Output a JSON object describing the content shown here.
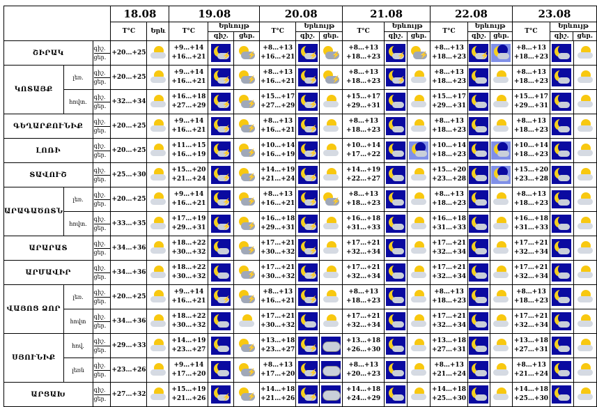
{
  "dates": [
    "18.08",
    "19.08",
    "20.08",
    "21.08",
    "22.08",
    "23.08"
  ],
  "sub": {
    "temp": "T°C",
    "phen_short": "Երև",
    "phen": "Երևույթ",
    "night": "գիշ.",
    "day": "ցեր.",
    "night_trunc": "գիշ.."
  },
  "rows": [
    {
      "region": "ՇԻՐԱԿ",
      "sub": "",
      "t18": [
        "+20…+25"
      ],
      "t": [
        "+9…+14",
        "+16…+21"
      ],
      "t20": [
        "+8…+13",
        "+16…+21"
      ],
      "t21": [
        "+8…+13",
        "+18…+23"
      ],
      "t22": [
        "+8…+13",
        "+18…+23"
      ],
      "t23": [
        "+8…+13",
        "+18…+23"
      ],
      "icons": [
        "sc",
        "ns",
        "sn",
        "ns",
        "sn",
        "ns",
        "sn",
        "ns",
        "mp",
        "nm",
        "ss"
      ]
    },
    {
      "region": "ԿՈՏԱՅՔ",
      "sub": "լեռ.",
      "t18": [
        "+20…+25"
      ],
      "t": [
        "+9…+14",
        "+16…+21"
      ],
      "t20": [
        "+8…+13",
        "+16…+21"
      ],
      "t21": [
        "+8…+13",
        "+18…+23"
      ],
      "t22": [
        "+8…+13",
        "+18…+23"
      ],
      "t23": [
        "+8…+13",
        "+18…+23"
      ],
      "icons": [
        "sc",
        "ns",
        "sn",
        "ns",
        "sn",
        "ns",
        "sc",
        "nm",
        "ss",
        "nm",
        "ss"
      ]
    },
    {
      "region": "",
      "sub": "հովտ.",
      "t18": [
        "+32…+34"
      ],
      "t": [
        "+16…+18",
        "+27…+29"
      ],
      "t20": [
        "+15…+17",
        "+27…+29"
      ],
      "t21": [
        "+15…+17",
        "+29…+31"
      ],
      "t22": [
        "+15…+17",
        "+29…+31"
      ],
      "t23": [
        "+15…+17",
        "+29…+31"
      ],
      "icons": [
        "sc",
        "ns",
        "sn",
        "ns",
        "sc",
        "nm",
        "ss",
        "nm",
        "ss",
        "nm",
        "ss"
      ]
    },
    {
      "region": "ԳԵՂԱՐՔՈՒՆԻՔ",
      "sub": "",
      "t18": [
        "+20…+25"
      ],
      "t": [
        "+9…+14",
        "+16…+21"
      ],
      "t20": [
        "+8…+13",
        "+16…+21"
      ],
      "t21": [
        "+8…+13",
        "+18…+23"
      ],
      "t22": [
        "+8…+13",
        "+18…+23"
      ],
      "t23": [
        "+8…+13",
        "+18…+23"
      ],
      "icons": [
        "sc",
        "ns",
        "sn",
        "ns",
        "sc",
        "nm",
        "ss",
        "nm",
        "ss",
        "nm",
        "ss"
      ]
    },
    {
      "region": "ԼՈՌԻ",
      "sub": "",
      "t18": [
        "+20…+25"
      ],
      "t": [
        "+11…+15",
        "+16…+19"
      ],
      "t20": [
        "+10…+14",
        "+16…+19"
      ],
      "t21": [
        "+10…+14",
        "+17…+22"
      ],
      "t22": [
        "+10…+14",
        "+18…+23"
      ],
      "t23": [
        "+10…+14",
        "+18…+23"
      ],
      "icons": [
        "sc",
        "ns",
        "sn",
        "ns",
        "sc",
        "nm",
        "mp",
        "nm",
        "mp",
        "nm",
        "ss"
      ]
    },
    {
      "region": "ՏԱՎՈՒՇ",
      "sub": "",
      "t18": [
        "+25…+30"
      ],
      "t": [
        "+15…+20",
        "+21…+24"
      ],
      "t20": [
        "+14…+19",
        "+21…+24"
      ],
      "t21": [
        "+14…+19",
        "+22…+27"
      ],
      "t22": [
        "+15…+20",
        "+23…+28"
      ],
      "t23": [
        "+15…+20",
        "+23…+28"
      ],
      "icons": [
        "sc",
        "ns",
        "sn",
        "ns",
        "sc",
        "nm",
        "ss",
        "nm",
        "mp",
        "nm",
        "ss"
      ]
    },
    {
      "region": "ԱՐԱԳԱԾՈՏՆ",
      "sub": "լեռ.",
      "t18": [
        "+20…+25"
      ],
      "t": [
        "+9…+14",
        "+16…+21"
      ],
      "t20": [
        "+8…+13",
        "+16…+21"
      ],
      "t21": [
        "+8…+13",
        "+18…+23"
      ],
      "t22": [
        "+8…+13",
        "+18…+23"
      ],
      "t23": [
        "+8…+13",
        "+18…+23"
      ],
      "icons": [
        "sc",
        "ns",
        "sn",
        "ns",
        "sn",
        "nm",
        "ss",
        "nm",
        "ss",
        "nm",
        "ss"
      ]
    },
    {
      "region": "",
      "sub": "հովտ.",
      "t18": [
        "+33…+35"
      ],
      "t": [
        "+17…+19",
        "+29…+31"
      ],
      "t20": [
        "+16…+18",
        "+29…+31"
      ],
      "t21": [
        "+16…+18",
        "+31…+33"
      ],
      "t22": [
        "+16…+18",
        "+31…+33"
      ],
      "t23": [
        "+16…+18",
        "+31…+33"
      ],
      "icons": [
        "sc",
        "ns",
        "sn",
        "ns",
        "sc",
        "nm",
        "ss",
        "nm",
        "ss",
        "nm",
        "ss"
      ]
    },
    {
      "region": "ԱՐԱՐԱՏ",
      "sub": "",
      "t18": [
        "+34…+36"
      ],
      "t": [
        "+18…+22",
        "+30…+32"
      ],
      "t20": [
        "+17…+21",
        "+30…+32"
      ],
      "t21": [
        "+17…+21",
        "+32…+34"
      ],
      "t22": [
        "+17…+21",
        "+32…+34"
      ],
      "t23": [
        "+17…+21",
        "+32…+34"
      ],
      "icons": [
        "sc",
        "nm",
        "sn",
        "ns",
        "sc",
        "nm",
        "ss",
        "nm",
        "ss",
        "nm",
        "ss"
      ]
    },
    {
      "region": "ԱՐՄԱՎԻՐ",
      "sub": "",
      "t18": [
        "+34…+36"
      ],
      "t": [
        "+18…+22",
        "+30…+32"
      ],
      "t20": [
        "+17…+21",
        "+30…+32"
      ],
      "t21": [
        "+17…+21",
        "+32…+34"
      ],
      "t22": [
        "+17…+21",
        "+32…+34"
      ],
      "t23": [
        "+17…+21",
        "+32…+34"
      ],
      "icons": [
        "sc",
        "nm",
        "sn",
        "ns",
        "sc",
        "nm",
        "ss",
        "nm",
        "ss",
        "nm",
        "ss"
      ]
    },
    {
      "region": "ՎԱՅՈՑ ՁՈՐ",
      "sub": "լեռ.",
      "t18": [
        "+20…+25"
      ],
      "t": [
        "+9…+14",
        "+16…+21"
      ],
      "t20": [
        "+8…+13",
        "+16…+21"
      ],
      "t21": [
        "+8…+13",
        "+18…+23"
      ],
      "t22": [
        "+8…+13",
        "+18…+23"
      ],
      "t23": [
        "+8…+13",
        "+18…+23"
      ],
      "icons": [
        "sc",
        "ns",
        "sn",
        "ns",
        "sc",
        "nm",
        "ss",
        "nm",
        "ss",
        "nm",
        "ss"
      ]
    },
    {
      "region": "",
      "sub": "հովտ",
      "t18": [
        "+34…+36"
      ],
      "t": [
        "+18…+22",
        "+30…+32"
      ],
      "t20": [
        "+17…+21",
        "+30…+32"
      ],
      "t21": [
        "+17…+21",
        "+32…+34"
      ],
      "t22": [
        "+17…+21",
        "+32…+34"
      ],
      "t23": [
        "+17…+21",
        "+32…+34"
      ],
      "icons": [
        "sc",
        "nm",
        "ss",
        "nm",
        "ss",
        "nm",
        "ss",
        "nm",
        "ss",
        "nm",
        "ss"
      ]
    },
    {
      "region": "ՍՅՈՒՆԻՔ",
      "sub": "հով.",
      "t18": [
        "+29…+33"
      ],
      "t": [
        "+14…+19",
        "+23…+27"
      ],
      "t20": [
        "+13…+18",
        "+23…+27"
      ],
      "t21": [
        "+13…+18",
        "+26…+30"
      ],
      "t22": [
        "+13…+18",
        "+27…+31"
      ],
      "t23": [
        "+13…+18",
        "+27…+31"
      ],
      "icons": [
        "sc",
        "nm",
        "sn",
        "ns",
        "cl",
        "nm",
        "ss",
        "nm",
        "ss",
        "nm",
        "ss"
      ]
    },
    {
      "region": "",
      "sub": "լեռն",
      "t18": [
        "+23…+26"
      ],
      "t": [
        "+9…+14",
        "+17…+20"
      ],
      "t20": [
        "+8…+13",
        "+17…+20"
      ],
      "t21": [
        "+8…+13",
        "+20…+23"
      ],
      "t22": [
        "+8…+13",
        "+21…+24"
      ],
      "t23": [
        "+8…+13",
        "+21…+24"
      ],
      "icons": [
        "sc",
        "nm",
        "sn",
        "ns",
        "cl",
        "nm",
        "ss",
        "nm",
        "ss",
        "nm",
        "ss"
      ]
    },
    {
      "region": "ԱՐՑԱԽ",
      "sub": "",
      "t18": [
        "+27…+32"
      ],
      "t": [
        "+15…+19",
        "+21…+26"
      ],
      "t20": [
        "+14…+18",
        "+21…+26"
      ],
      "t21": [
        "+14…+18",
        "+24…+29"
      ],
      "t22": [
        "+14…+18",
        "+25…+30"
      ],
      "t23": [
        "+14…+18",
        "+25…+30"
      ],
      "icons": [
        "sc",
        "ns",
        "sn",
        "ns",
        "cl",
        "nm",
        "ss",
        "nm",
        "ss",
        "nm",
        "ss"
      ]
    }
  ]
}
